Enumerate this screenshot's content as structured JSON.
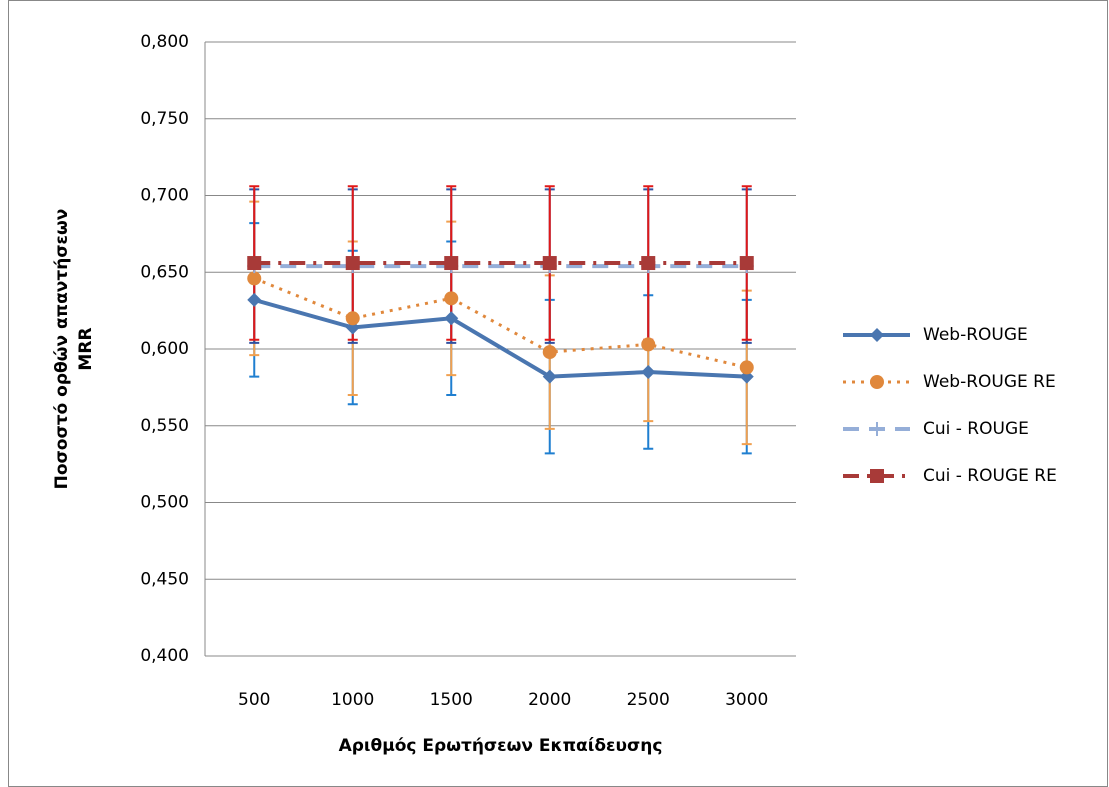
{
  "chart_data": {
    "type": "line",
    "xlabel": "Αριθμός Ερωτήσεων Εκπαίδευσης",
    "ylabel": [
      "Ποσοστό ορθών απαντήσεων",
      "MRR"
    ],
    "categories": [
      "500",
      "1000",
      "1500",
      "2000",
      "2500",
      "3000"
    ],
    "ylim": [
      0.4,
      0.8
    ],
    "yticks": [
      {
        "value": 0.4,
        "label": "0,400"
      },
      {
        "value": 0.45,
        "label": "0,450"
      },
      {
        "value": 0.5,
        "label": "0,500"
      },
      {
        "value": 0.55,
        "label": "0,550"
      },
      {
        "value": 0.6,
        "label": "0,600"
      },
      {
        "value": 0.65,
        "label": "0,650"
      },
      {
        "value": 0.7,
        "label": "0,700"
      },
      {
        "value": 0.75,
        "label": "0,750"
      },
      {
        "value": 0.8,
        "label": "0,800"
      }
    ],
    "grid": true,
    "legend": "right",
    "series": [
      {
        "name": "Web-ROUGE",
        "color": "#4a76b0",
        "error_color": "#1f7fd0",
        "marker": "diamond",
        "dash": "solid",
        "width": 4,
        "values": [
          0.632,
          0.614,
          0.62,
          0.582,
          0.585,
          0.582
        ],
        "errors": [
          0.05,
          0.05,
          0.05,
          0.05,
          0.05,
          0.05
        ]
      },
      {
        "name": "Web-ROUGE RE",
        "color": "#e0883c",
        "error_color": "#f0a050",
        "marker": "circle",
        "dash": "dot",
        "width": 3,
        "values": [
          0.646,
          0.62,
          0.633,
          0.598,
          0.603,
          0.588
        ],
        "errors": [
          0.05,
          0.05,
          0.05,
          0.05,
          0.05,
          0.05
        ]
      },
      {
        "name": "Cui - ROUGE",
        "color": "#95aed8",
        "error_color": "#3050a0",
        "marker": "plus",
        "dash": "dash",
        "width": 4,
        "values": [
          0.654,
          0.654,
          0.654,
          0.654,
          0.654,
          0.654
        ],
        "errors": [
          0.05,
          0.05,
          0.05,
          0.05,
          0.05,
          0.05
        ]
      },
      {
        "name": "Cui - ROUGE RE",
        "color": "#a83a38",
        "error_color": "#e01818",
        "marker": "square",
        "dash": "dashdot",
        "width": 4,
        "values": [
          0.656,
          0.656,
          0.656,
          0.656,
          0.656,
          0.656
        ],
        "errors": [
          0.05,
          0.05,
          0.05,
          0.05,
          0.05,
          0.05
        ]
      }
    ]
  }
}
